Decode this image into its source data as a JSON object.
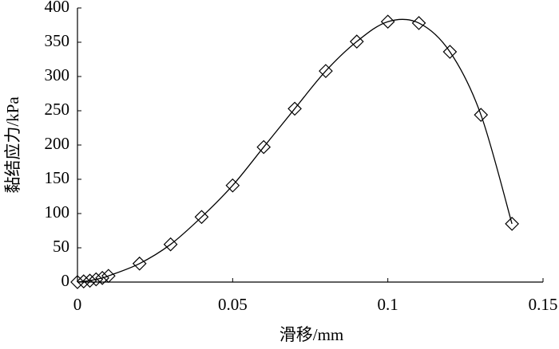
{
  "chart_data": {
    "type": "line",
    "x_label": "滑移/mm",
    "y_label": "黏结应力/kPa",
    "x": [
      0,
      0.002,
      0.004,
      0.006,
      0.008,
      0.01,
      0.02,
      0.03,
      0.04,
      0.05,
      0.06,
      0.07,
      0.08,
      0.09,
      0.1,
      0.11,
      0.12,
      0.13,
      0.14
    ],
    "values": [
      0,
      1,
      2,
      4,
      6,
      9,
      27,
      55,
      95,
      141,
      197,
      253,
      308,
      351,
      380,
      378,
      336,
      244,
      85
    ],
    "color": "#000000",
    "xlim": [
      0,
      0.15
    ],
    "xticks": [
      0,
      0.05,
      0.1,
      0.15
    ],
    "ylim": [
      0,
      400
    ],
    "yticks": [
      0,
      50,
      100,
      150,
      200,
      250,
      300,
      350,
      400
    ],
    "grid": false,
    "marker": "diamond"
  }
}
